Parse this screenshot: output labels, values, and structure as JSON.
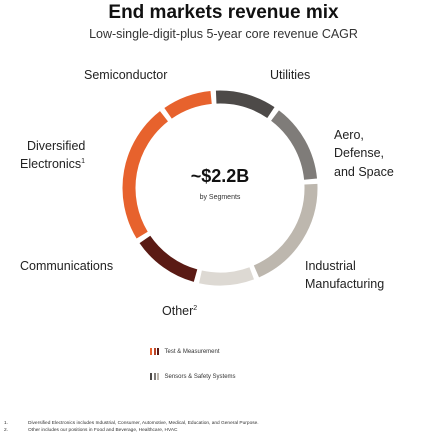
{
  "title": "End markets revenue mix",
  "subtitle": "Low-single-digit-plus 5-year core revenue CAGR",
  "center": {
    "value": "~$2.2B",
    "label": "by Segments"
  },
  "colors": {
    "test_measurement": [
      "#e7622d",
      "#b8432a",
      "#5a1a14"
    ],
    "sensors_safety": [
      "#4d4a48",
      "#7f7c79",
      "#bdb7ae",
      "#ddd9d3"
    ]
  },
  "chart_data": {
    "type": "pie",
    "variant": "donut",
    "title": "End markets revenue mix",
    "subtitle": "Low-single-digit-plus 5-year core revenue CAGR",
    "center_text": "~$2.2B",
    "center_subtext": "by Segments",
    "legend_position": "bottom-center",
    "series": [
      {
        "name": "Test & Measurement",
        "color": "#e7622d"
      },
      {
        "name": "Sensors & Safety Systems",
        "color": "#7f7c79"
      }
    ],
    "slices": [
      {
        "label": "Utilities",
        "value": 11,
        "color": "#4d4a48",
        "segment": "Sensors & Safety Systems"
      },
      {
        "label": "Aero, Defense, and Space",
        "value": 14,
        "color": "#7f7c79",
        "segment": "Sensors & Safety Systems"
      },
      {
        "label": "Industrial Manufacturing",
        "value": 20,
        "color": "#bdb7ae",
        "segment": "Sensors & Safety Systems"
      },
      {
        "label": "Other",
        "footnote": "2",
        "value": 10,
        "color": "#ddd9d3",
        "segment": "Sensors & Safety Systems"
      },
      {
        "label": "Communications",
        "value": 12,
        "color": "#5a1a14",
        "segment": "Test & Measurement"
      },
      {
        "label": "Diversified Electronics",
        "footnote": "1",
        "value": 24,
        "color": "#e7622d",
        "segment": "Test & Measurement"
      },
      {
        "label": "Semiconductor",
        "value": 9,
        "color": "#e7622d",
        "segment": "Test & Measurement"
      }
    ]
  },
  "labels": {
    "semiconductor": "Semiconductor",
    "utilities": "Utilities",
    "aero_1": "Aero,",
    "aero_2": "Defense,",
    "aero_3": "and Space",
    "diversified_1": "Diversified",
    "diversified_2": "Electronics",
    "diversified_sup": "1",
    "communications": "Communications",
    "industrial_1": "Industrial",
    "industrial_2": "Manufacturing",
    "other": "Other",
    "other_sup": "2"
  },
  "legend": [
    {
      "label": "Test & Measurement",
      "colors": [
        "#e7622d",
        "#b8432a",
        "#5a1a14"
      ]
    },
    {
      "label": "Sensors & Safety Systems",
      "colors": [
        "#4d4a48",
        "#7f7c79",
        "#bdb7ae"
      ]
    }
  ],
  "footnotes": [
    {
      "num": "1.",
      "text": "Diversified Electronics includes Industrial, Consumer, Automotive, Medical, Education, and General Purpose."
    },
    {
      "num": "2.",
      "text": "Other includes our positions in Food and Beverage, Healthcare, HVAC"
    }
  ]
}
